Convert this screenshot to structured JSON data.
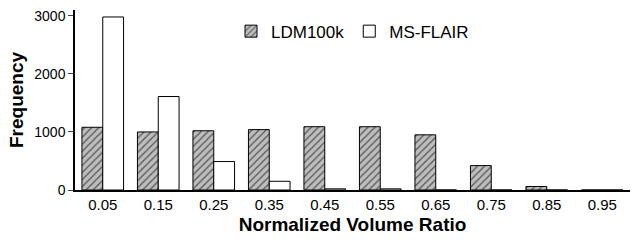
{
  "chart_data": {
    "type": "bar",
    "x_label": "Normalized Volume Ratio",
    "y_label": "Frequency",
    "categories": [
      "0.05",
      "0.15",
      "0.25",
      "0.35",
      "0.45",
      "0.55",
      "0.65",
      "0.75",
      "0.85",
      "0.95"
    ],
    "series": [
      {
        "name": "LDM100k",
        "color": "#bdbdbd",
        "values": [
          1080,
          1000,
          1020,
          1040,
          1090,
          1090,
          950,
          420,
          60,
          0
        ]
      },
      {
        "name": "MS-FLAIR",
        "color": "#ffffff",
        "values": [
          2980,
          1610,
          490,
          150,
          20,
          20,
          0,
          0,
          0,
          0
        ]
      }
    ],
    "ylim": [
      0,
      3100
    ],
    "yticks": [
      0,
      1000,
      2000,
      3000
    ],
    "grid": false,
    "legend": "top"
  }
}
